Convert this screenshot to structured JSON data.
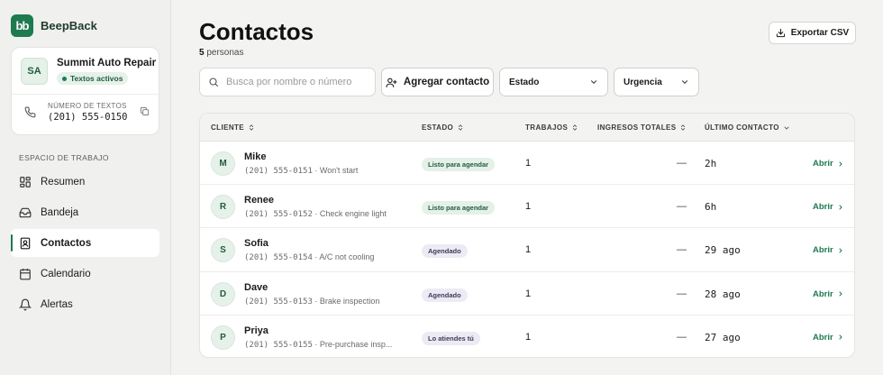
{
  "brand": {
    "logo_text": "bb",
    "name": "BeepBack",
    "accent": "#1f7a50"
  },
  "account": {
    "initials": "SA",
    "name": "Summit Auto Repair",
    "status": "Textos activos",
    "phone_label": "NÚMERO DE TEXTOS",
    "phone": "(201) 555-0150"
  },
  "sidebar": {
    "section_label": "ESPACIO DE TRABAJO",
    "items": [
      {
        "label": "Resumen",
        "icon": "grid-icon",
        "active": false
      },
      {
        "label": "Bandeja",
        "icon": "inbox-icon",
        "active": false
      },
      {
        "label": "Contactos",
        "icon": "contact-card-icon",
        "active": true
      },
      {
        "label": "Calendario",
        "icon": "calendar-icon",
        "active": false
      },
      {
        "label": "Alertas",
        "icon": "bell-icon",
        "active": false
      }
    ]
  },
  "header": {
    "title": "Contactos",
    "count": "5",
    "count_label": "personas",
    "export_label": "Exportar CSV"
  },
  "toolbar": {
    "search_placeholder": "Busca por nombre o número",
    "add_label": "Agregar contacto",
    "estado_label": "Estado",
    "urgencia_label": "Urgencia"
  },
  "table": {
    "columns": [
      "CLIENTE",
      "ESTADO",
      "TRABAJOS",
      "INGRESOS TOTALES",
      "ÚLTIMO CONTACTO"
    ],
    "open_label": "Abrir",
    "rows": [
      {
        "initial": "M",
        "name": "Mike",
        "phone": "(201) 555-0151",
        "note": "Won't start",
        "status": "Listo para agendar",
        "status_kind": "green",
        "jobs": "1",
        "income": "—",
        "last": "2h"
      },
      {
        "initial": "R",
        "name": "Renee",
        "phone": "(201) 555-0152",
        "note": "Check engine light",
        "status": "Listo para agendar",
        "status_kind": "green",
        "jobs": "1",
        "income": "—",
        "last": "6h"
      },
      {
        "initial": "S",
        "name": "Sofia",
        "phone": "(201) 555-0154",
        "note": "A/C not cooling",
        "status": "Agendado",
        "status_kind": "purple",
        "jobs": "1",
        "income": "—",
        "last": "29 ago"
      },
      {
        "initial": "D",
        "name": "Dave",
        "phone": "(201) 555-0153",
        "note": "Brake inspection",
        "status": "Agendado",
        "status_kind": "purple",
        "jobs": "1",
        "income": "—",
        "last": "28 ago"
      },
      {
        "initial": "P",
        "name": "Priya",
        "phone": "(201) 555-0155",
        "note": "Pre-purchase insp...",
        "status": "Lo atiendes tú",
        "status_kind": "purple",
        "jobs": "1",
        "income": "—",
        "last": "27 ago"
      }
    ]
  }
}
